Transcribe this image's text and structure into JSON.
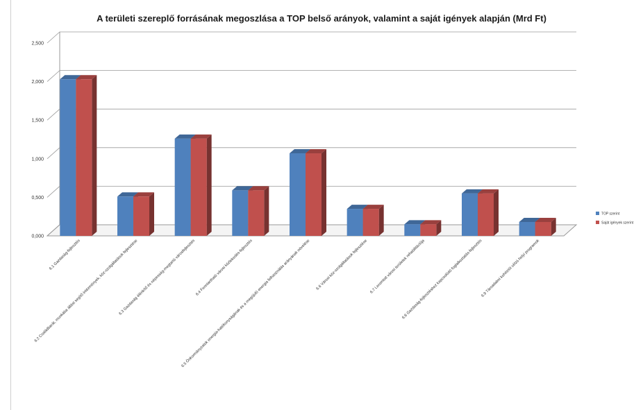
{
  "chart_data": {
    "type": "bar",
    "title": "A területi szereplő forrásának megoszlása a TOP belső arányok, valamint a saját igények alapján (Mrd Ft)",
    "xlabel": "",
    "ylabel": "",
    "ylim": [
      0,
      2.5
    ],
    "yticks": [
      "0,000",
      "0,500",
      "1,000",
      "1,500",
      "2,000",
      "2,500"
    ],
    "grid": true,
    "legend_position": "right",
    "categories": [
      "6.1 Gazdaság-fejlesztés",
      "6.2 Családbarát, munkába állást segítő intézmények, köz-szolgáltatások fejlesztése",
      "6.3 Gazdaság élénkítő és népesség-megtartó városfejlesztés",
      "6.4 Fenntartható városi közlekedés-fejlesztés",
      "6.5 Önkormányzatok energia-hatékonyságának és a megújuló energia felhasználás arányának növelése",
      "6.6 Városi köz-szolgáltatások fejlesztése",
      "6.7 Leromlott városi területek rehabilitációja",
      "6.8 Gazdaság-fejlesztéshez kapcsolódó foglalkoztatás-fejlesztés",
      "6.9 Társadalmi kohéziót célzó helyi programok"
    ],
    "series": [
      {
        "name": "TOP szerint",
        "color": "#4f81bd",
        "values": [
          2.03,
          0.51,
          1.26,
          0.59,
          1.07,
          0.35,
          0.15,
          0.55,
          0.18
        ]
      },
      {
        "name": "Saját igények szerint",
        "color": "#c0504d",
        "values": [
          2.03,
          0.51,
          1.26,
          0.59,
          1.07,
          0.35,
          0.15,
          0.55,
          0.18
        ]
      }
    ]
  }
}
